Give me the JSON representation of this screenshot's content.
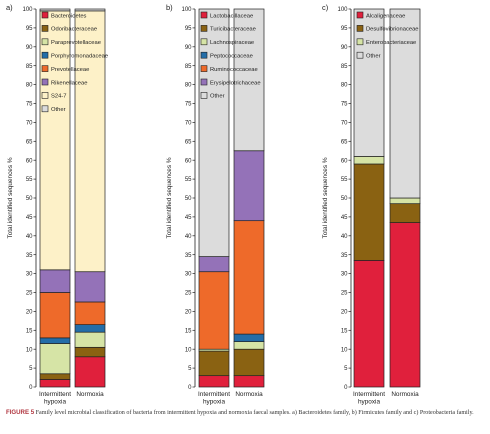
{
  "caption": {
    "label": "FIGURE 5",
    "text": "Family level microbial classification of bacteria from intermittent hypoxia and normoxia faecal samples. a) Bacteroidetes family, b) Firmicutes family and c) Proteobacteria family."
  },
  "chart_data": [
    {
      "type": "bar",
      "stacked": true,
      "panel_label": "a)",
      "ylabel": "Total identified sequences %",
      "ylim": [
        0,
        100
      ],
      "yticks": [
        0,
        5,
        10,
        15,
        20,
        25,
        30,
        35,
        40,
        45,
        50,
        55,
        60,
        65,
        70,
        75,
        80,
        85,
        90,
        95,
        100
      ],
      "grid": false,
      "legend_position": "inside-top",
      "categories": [
        [
          "Intermittent",
          "hypoxia"
        ],
        [
          "Normoxia"
        ]
      ],
      "series": [
        {
          "name": "Bacteroidetes",
          "color": "#e0203c",
          "values": [
            2,
            8
          ]
        },
        {
          "name": "Odoribacteraceae",
          "color": "#8a6212",
          "values": [
            1.5,
            2.5
          ]
        },
        {
          "name": "Paraprevotellaceae",
          "color": "#d6e4a6",
          "values": [
            8,
            4
          ]
        },
        {
          "name": "Porphyromonadaceae",
          "color": "#236da8",
          "values": [
            1.5,
            2
          ]
        },
        {
          "name": "Prevotellaceae",
          "color": "#ee6a2a",
          "values": [
            12,
            6
          ]
        },
        {
          "name": "Rikenellaceae",
          "color": "#9472b8",
          "values": [
            6,
            8
          ]
        },
        {
          "name": "S24-7",
          "color": "#fdf1c8",
          "values": [
            68.5,
            69
          ]
        },
        {
          "name": "Other",
          "color": "#dcdcdc",
          "values": [
            0.5,
            0.5
          ]
        }
      ]
    },
    {
      "type": "bar",
      "stacked": true,
      "panel_label": "b)",
      "ylabel": "Total identified sequences %",
      "ylim": [
        0,
        100
      ],
      "yticks": [
        0,
        5,
        10,
        15,
        20,
        25,
        30,
        35,
        40,
        45,
        50,
        55,
        60,
        65,
        70,
        75,
        80,
        85,
        90,
        95,
        100
      ],
      "grid": false,
      "legend_position": "inside-top",
      "categories": [
        [
          "Intermittent",
          "hypoxia"
        ],
        [
          "Normoxia"
        ]
      ],
      "series": [
        {
          "name": "Lactobacillaceae",
          "color": "#e0203c",
          "values": [
            3,
            3
          ]
        },
        {
          "name": "Turicibacteraceae",
          "color": "#8a6212",
          "values": [
            6.5,
            7
          ]
        },
        {
          "name": "Lachnospiraceae",
          "color": "#d6e4a6",
          "values": [
            0.5,
            2
          ]
        },
        {
          "name": "Peptococcaceae",
          "color": "#236da8",
          "values": [
            0,
            2
          ]
        },
        {
          "name": "Ruminococcaceae",
          "color": "#ee6a2a",
          "values": [
            20.5,
            30
          ]
        },
        {
          "name": "Erysipelotrichaceae",
          "color": "#9472b8",
          "values": [
            4,
            18.5
          ]
        },
        {
          "name": "Other",
          "color": "#dcdcdc",
          "values": [
            65.5,
            37.5
          ]
        }
      ]
    },
    {
      "type": "bar",
      "stacked": true,
      "panel_label": "c)",
      "ylabel": "Total identified sequences %",
      "ylim": [
        0,
        100
      ],
      "yticks": [
        0,
        5,
        10,
        15,
        20,
        25,
        30,
        35,
        40,
        45,
        50,
        55,
        60,
        65,
        70,
        75,
        80,
        85,
        90,
        95,
        100
      ],
      "grid": false,
      "legend_position": "inside-top",
      "categories": [
        [
          "Intermittent",
          "hypoxia"
        ],
        [
          "Normoxia"
        ]
      ],
      "series": [
        {
          "name": "Alcaligenaceae",
          "color": "#e0203c",
          "values": [
            33.5,
            43.5
          ]
        },
        {
          "name": "Desulfovibrionaceae",
          "color": "#8a6212",
          "values": [
            25.5,
            5
          ]
        },
        {
          "name": "Enterobacteriaceae",
          "color": "#d6e4a6",
          "values": [
            2,
            1.5
          ]
        },
        {
          "name": "Other",
          "color": "#dcdcdc",
          "values": [
            39,
            50
          ]
        }
      ]
    }
  ]
}
